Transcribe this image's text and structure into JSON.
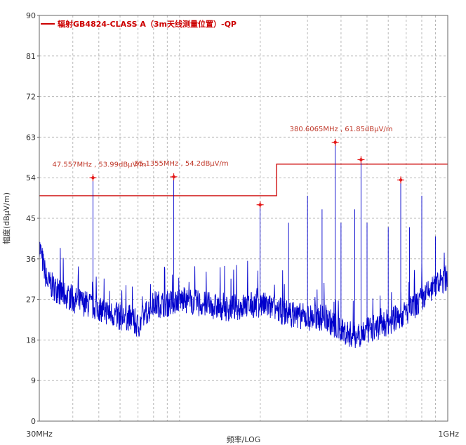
{
  "chart_data": {
    "type": "line",
    "title": "",
    "xlabel": "频率/LOG",
    "ylabel": "幅度(dBμV/m)",
    "x_scale": "log",
    "xlim_mhz": [
      30,
      1000
    ],
    "x_tick_labels": [
      {
        "mhz": 30,
        "label": "30MHz"
      },
      {
        "mhz": 1000,
        "label": "1GHz"
      }
    ],
    "ylim": [
      0,
      90
    ],
    "y_ticks": [
      0,
      9,
      18,
      27,
      36,
      45,
      54,
      63,
      72,
      81,
      90
    ],
    "grid": true,
    "legend": {
      "position": "top-left",
      "entries": [
        {
          "name": "辐射GB4824-CLASS A（3m天线测量位置）-QP",
          "color": "#cc0000"
        }
      ]
    },
    "limit_line": {
      "name": "辐射GB4824-CLASS A（3m天线测量位置）-QP",
      "color": "#cc0000",
      "segments": [
        {
          "x": [
            30,
            230
          ],
          "y": 50
        },
        {
          "x": [
            230,
            1000
          ],
          "y": 57
        }
      ]
    },
    "series": [
      {
        "name": "",
        "color": "#0000cc",
        "profile_mhz": [
          30,
          32,
          35,
          40,
          45,
          50,
          55,
          60,
          65,
          70,
          75,
          80,
          90,
          100,
          120,
          150,
          200,
          250,
          300,
          350,
          400,
          450,
          500,
          550,
          600,
          700,
          800,
          900,
          1000
        ],
        "profile_dbuv": [
          39,
          31,
          29,
          27,
          26,
          25,
          24,
          23,
          23,
          21,
          24,
          26,
          26,
          27,
          26,
          25,
          26,
          24,
          23,
          23,
          20,
          19,
          20,
          21,
          22,
          24,
          27,
          30,
          32
        ],
        "spikes": [
          {
            "mhz": 47.557,
            "dbuv": 53.99
          },
          {
            "mhz": 95.1355,
            "dbuv": 54.2
          },
          {
            "mhz": 199.7,
            "dbuv": 48
          },
          {
            "mhz": 255,
            "dbuv": 44
          },
          {
            "mhz": 300,
            "dbuv": 50
          },
          {
            "mhz": 340,
            "dbuv": 47
          },
          {
            "mhz": 380.6065,
            "dbuv": 61.85
          },
          {
            "mhz": 400,
            "dbuv": 44
          },
          {
            "mhz": 450,
            "dbuv": 47
          },
          {
            "mhz": 475,
            "dbuv": 58
          },
          {
            "mhz": 500,
            "dbuv": 44
          },
          {
            "mhz": 600,
            "dbuv": 43
          },
          {
            "mhz": 668,
            "dbuv": 53.5
          },
          {
            "mhz": 720,
            "dbuv": 43
          },
          {
            "mhz": 800,
            "dbuv": 50
          },
          {
            "mhz": 900,
            "dbuv": 41
          }
        ]
      }
    ],
    "markers": [
      {
        "mhz": 47.557,
        "dbuv": 53.99
      },
      {
        "mhz": 95.1355,
        "dbuv": 54.2
      },
      {
        "mhz": 199.7,
        "dbuv": 48
      },
      {
        "mhz": 380.6065,
        "dbuv": 61.85
      },
      {
        "mhz": 475,
        "dbuv": 58
      },
      {
        "mhz": 668,
        "dbuv": 53.5
      }
    ],
    "annotations": [
      {
        "mhz": 47.557,
        "dbuv": 53.99,
        "text": "47.557MHz , 53.99dBμV/m"
      },
      {
        "mhz": 95.1355,
        "dbuv": 54.2,
        "text": "95.1355MHz , 54.2dBμV/m"
      },
      {
        "mhz": 380.6065,
        "dbuv": 61.85,
        "text": "380.6065MHz , 61.85dBμV/m"
      }
    ]
  }
}
